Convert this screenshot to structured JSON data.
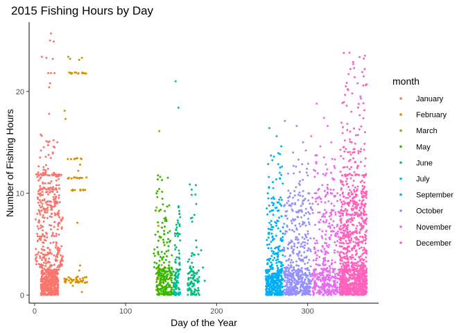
{
  "chart_data": {
    "type": "scatter",
    "title": "2015 Fishing Hours by Day",
    "xlabel": "Day of the Year",
    "ylabel": "Number of Fishing Hours",
    "xlim": [
      -6,
      378
    ],
    "ylim": [
      -0.8,
      26.8
    ],
    "x_ticks": [
      0,
      100,
      200,
      300
    ],
    "y_ticks": [
      0,
      10,
      20
    ],
    "grid": false,
    "legend": {
      "title": "month",
      "position": "right"
    },
    "series": [
      {
        "name": "January",
        "color": "#F8766D",
        "days": [
          1,
          31
        ],
        "clusters": [
          [
            7,
            26,
            0,
            2.5,
            420
          ],
          [
            1,
            31,
            2.5,
            8,
            180
          ],
          [
            3,
            28,
            8,
            12,
            120
          ],
          [
            4,
            22,
            12,
            16,
            25
          ]
        ],
        "bands": [
          [
            1,
            30,
            11.8,
            26
          ],
          [
            5,
            25,
            10.4,
            16
          ],
          [
            2,
            26,
            1.5,
            12
          ]
        ],
        "points": [
          [
            18,
            25.7
          ],
          [
            17,
            25.0
          ],
          [
            21,
            24.9
          ],
          [
            8,
            23.4
          ],
          [
            13,
            23.3
          ],
          [
            20,
            23.2
          ],
          [
            18,
            21.8
          ],
          [
            15,
            21.8
          ],
          [
            22,
            21.8
          ],
          [
            17,
            20.8
          ],
          [
            16,
            20.4
          ],
          [
            16,
            17.8
          ],
          [
            25,
            15.0
          ],
          [
            22,
            14.5
          ],
          [
            20,
            14.0
          ],
          [
            6,
            13.5
          ],
          [
            3,
            11.6
          ]
        ]
      },
      {
        "name": "February",
        "color": "#D89000",
        "days": [
          32,
          59
        ],
        "clusters": [
          [
            32,
            59,
            1.2,
            1.8,
            40
          ]
        ],
        "bands": [
          [
            38,
            58,
            21.8,
            14
          ],
          [
            36,
            58,
            11.5,
            14
          ],
          [
            40,
            56,
            10.3,
            10
          ],
          [
            36,
            54,
            13.4,
            8
          ]
        ],
        "points": [
          [
            37,
            23.4
          ],
          [
            39,
            23.2
          ],
          [
            52,
            23.3
          ],
          [
            49,
            23.1
          ],
          [
            33,
            18.1
          ],
          [
            34,
            17.3
          ],
          [
            50,
            12.8
          ],
          [
            48,
            12.2
          ],
          [
            47,
            7.1
          ],
          [
            50,
            2.9
          ],
          [
            49,
            2.4
          ],
          [
            52,
            0.3
          ],
          [
            42,
            0.9
          ]
        ]
      },
      {
        "name": "March",
        "color": "#A3A500",
        "days": [
          130,
          140
        ],
        "clusters": [
          [
            130,
            140,
            0.5,
            3,
            20
          ]
        ],
        "bands": [],
        "points": [
          [
            137,
            16.1
          ],
          [
            134,
            8.6
          ],
          [
            136,
            6.8
          ]
        ]
      },
      {
        "name": "May",
        "color": "#39B600",
        "days": [
          131,
          151
        ],
        "clusters": [
          [
            134,
            151,
            0,
            2.5,
            150
          ],
          [
            131,
            151,
            2.5,
            7,
            60
          ],
          [
            132,
            148,
            7,
            12,
            20
          ]
        ],
        "bands": [],
        "points": [
          [
            138,
            11.6
          ],
          [
            140,
            11.3
          ],
          [
            135,
            10.2
          ],
          [
            144,
            7.6
          ],
          [
            141,
            8.9
          ]
        ]
      },
      {
        "name": "June",
        "color": "#00BF7D",
        "days": [
          152,
          181
        ],
        "clusters": [
          [
            152,
            160,
            0,
            2.5,
            60
          ],
          [
            154,
            160,
            2.5,
            9,
            40
          ],
          [
            168,
            181,
            0,
            2.5,
            80
          ],
          [
            168,
            178,
            2.5,
            11,
            25
          ]
        ],
        "bands": [],
        "points": [
          [
            158,
            18.4
          ],
          [
            180,
            4.0
          ],
          [
            187,
            1.4
          ],
          [
            185,
            2.7
          ],
          [
            183,
            4.4
          ]
        ]
      },
      {
        "name": "July",
        "color": "#00BFC4",
        "days": [
          154,
          160
        ],
        "clusters": [
          [
            154,
            160,
            0,
            2,
            12
          ]
        ],
        "bands": [],
        "points": [
          [
            155,
            21.0
          ]
        ]
      },
      {
        "name": "September",
        "color": "#00B0F6",
        "days": [
          254,
          273
        ],
        "clusters": [
          [
            254,
            273,
            0,
            2.5,
            280
          ],
          [
            255,
            273,
            2.5,
            9,
            110
          ],
          [
            256,
            273,
            9,
            14,
            30
          ]
        ],
        "bands": [],
        "points": [
          [
            258,
            16.4
          ],
          [
            266,
            15.6
          ],
          [
            271,
            14.6
          ],
          [
            263,
            13.6
          ]
        ]
      },
      {
        "name": "October",
        "color": "#9590FF",
        "days": [
          274,
          304
        ],
        "clusters": [
          [
            274,
            304,
            0,
            2.5,
            320
          ],
          [
            274,
            304,
            2.5,
            9,
            170
          ],
          [
            276,
            302,
            9,
            13,
            40
          ]
        ],
        "bands": [],
        "points": [
          [
            275,
            17.1
          ],
          [
            288,
            16.6
          ],
          [
            295,
            15.0
          ],
          [
            298,
            14.2
          ],
          [
            284,
            14.0
          ],
          [
            290,
            13.3
          ]
        ]
      },
      {
        "name": "November",
        "color": "#E76BF3",
        "days": [
          305,
          334
        ],
        "clusters": [
          [
            305,
            334,
            0,
            2.5,
            220
          ],
          [
            305,
            334,
            2.5,
            10,
            160
          ],
          [
            306,
            330,
            10,
            14,
            35
          ]
        ],
        "bands": [],
        "points": [
          [
            310,
            18.8
          ],
          [
            318,
            17.4
          ],
          [
            322,
            16.6
          ],
          [
            304,
            15.6
          ],
          [
            326,
            15.0
          ],
          [
            314,
            14.6
          ]
        ]
      },
      {
        "name": "December",
        "color": "#FF62BC",
        "days": [
          335,
          365
        ],
        "clusters": [
          [
            335,
            365,
            0,
            2.5,
            520
          ],
          [
            335,
            365,
            2.5,
            10,
            420
          ],
          [
            336,
            365,
            10,
            15,
            90
          ],
          [
            336,
            364,
            15,
            24,
            40
          ]
        ],
        "bands": [
          [
            338,
            365,
            11.8,
            20
          ],
          [
            340,
            364,
            7.9,
            16
          ]
        ],
        "points": [
          [
            346,
            23.8
          ],
          [
            363,
            23.5
          ],
          [
            350,
            22.9
          ],
          [
            347,
            22.2
          ],
          [
            360,
            21.9
          ],
          [
            345,
            21.7
          ],
          [
            365,
            20.7
          ],
          [
            342,
            20.5
          ],
          [
            355,
            20.8
          ],
          [
            349,
            19.8
          ],
          [
            358,
            19.5
          ],
          [
            343,
            18.6
          ]
        ]
      }
    ]
  }
}
